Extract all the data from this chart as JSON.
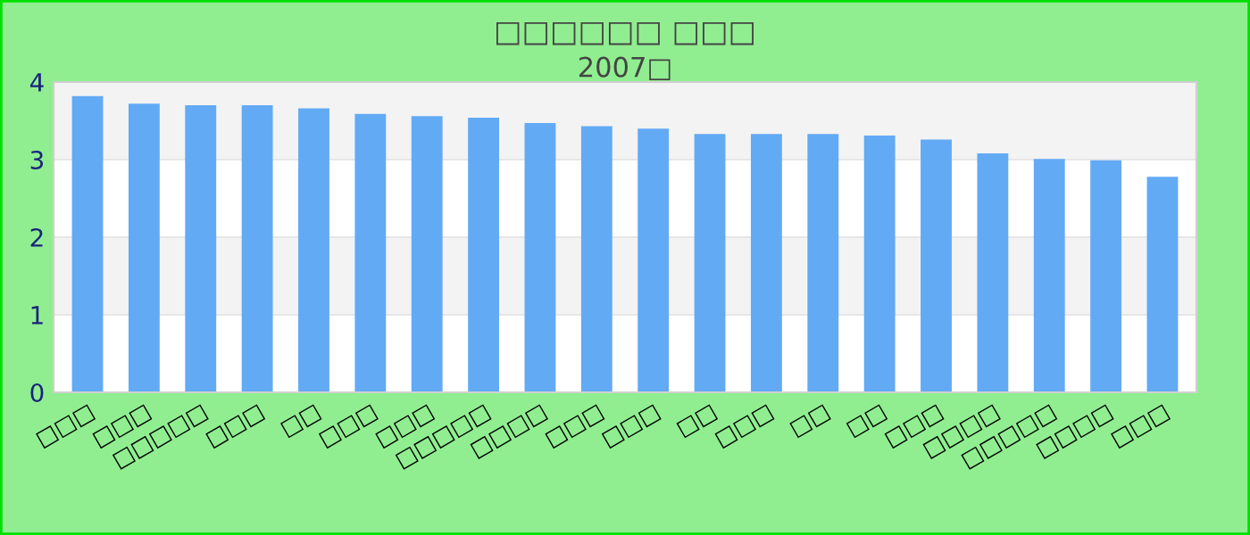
{
  "chart_data": {
    "type": "bar",
    "title": "□□□□□□ □□□",
    "subtitle": "2007□",
    "categories": [
      "□□□",
      "□□□",
      "□□□□□",
      "□□□",
      "□□",
      "□□□",
      "□□□",
      "□□□□□",
      "□□□□",
      "□□□",
      "□□□",
      "□□",
      "□□□",
      "□□",
      "□□",
      "□□□",
      "□□□□",
      "□□□□□",
      "□□□□",
      "□□□"
    ],
    "values": [
      3.82,
      3.72,
      3.7,
      3.7,
      3.66,
      3.59,
      3.56,
      3.54,
      3.47,
      3.43,
      3.4,
      3.33,
      3.33,
      3.33,
      3.31,
      3.26,
      3.08,
      3.01,
      2.99,
      2.78
    ],
    "color": "#63aaf5",
    "ylim": [
      0,
      4
    ],
    "yticks": [
      0,
      1,
      2,
      3,
      4
    ],
    "grid": "y",
    "legend": false
  }
}
